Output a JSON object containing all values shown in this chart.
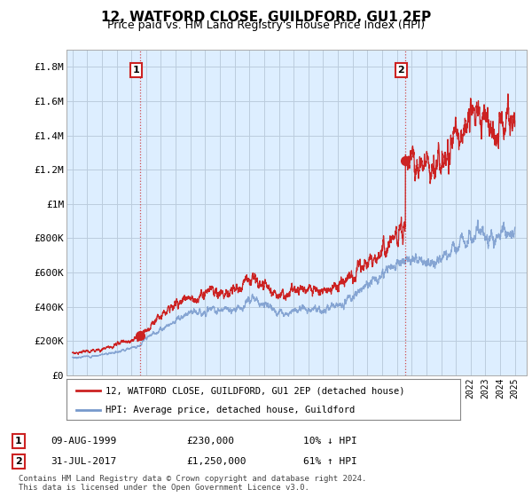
{
  "title": "12, WATFORD CLOSE, GUILDFORD, GU1 2EP",
  "subtitle": "Price paid vs. HM Land Registry's House Price Index (HPI)",
  "title_fontsize": 11,
  "subtitle_fontsize": 9,
  "ylim": [
    0,
    1900000
  ],
  "yticks": [
    0,
    200000,
    400000,
    600000,
    800000,
    1000000,
    1200000,
    1400000,
    1600000,
    1800000
  ],
  "ytick_labels": [
    "£0",
    "£200K",
    "£400K",
    "£600K",
    "£800K",
    "£1M",
    "£1.2M",
    "£1.4M",
    "£1.6M",
    "£1.8M"
  ],
  "sale1_year": 1999.6,
  "sale1_price": 230000,
  "sale2_year": 2017.58,
  "sale2_price": 1250000,
  "red_line_color": "#cc2222",
  "blue_line_color": "#7799cc",
  "chart_bg_color": "#ddeeff",
  "background_color": "#ffffff",
  "grid_color": "#bbccdd",
  "footer_text": "Contains HM Land Registry data © Crown copyright and database right 2024.\nThis data is licensed under the Open Government Licence v3.0.",
  "legend1_label": "12, WATFORD CLOSE, GUILDFORD, GU1 2EP (detached house)",
  "legend2_label": "HPI: Average price, detached house, Guildford",
  "annot1_label": "09-AUG-1999",
  "annot1_price": "£230,000",
  "annot1_hpi": "10% ↓ HPI",
  "annot2_label": "31-JUL-2017",
  "annot2_price": "£1,250,000",
  "annot2_hpi": "61% ↑ HPI"
}
